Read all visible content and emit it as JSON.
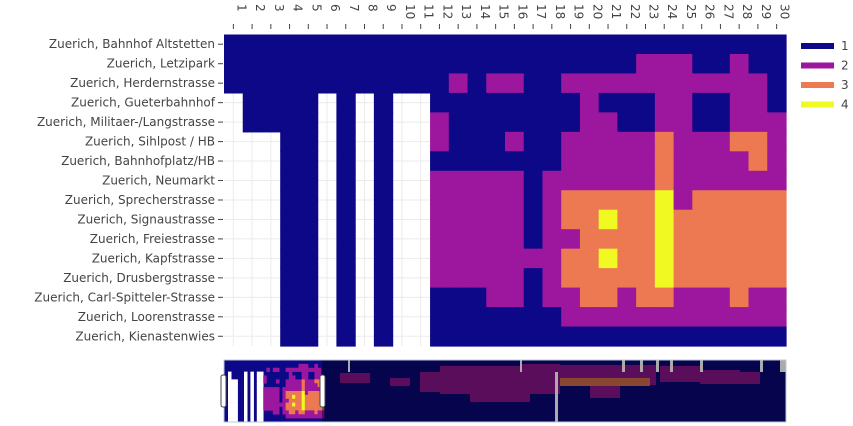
{
  "chart_data": {
    "type": "heatmap",
    "title": "",
    "xlabel": "",
    "ylabel": "",
    "x": [
      "1",
      "2",
      "3",
      "4",
      "5",
      "6",
      "7",
      "8",
      "9",
      "10",
      "11",
      "12",
      "13",
      "14",
      "15",
      "16",
      "17",
      "18",
      "19",
      "20",
      "21",
      "22",
      "23",
      "24",
      "25",
      "26",
      "27",
      "28",
      "29",
      "30"
    ],
    "y": [
      "Zuerich, Bahnhof Altstetten",
      "Zuerich, Letzipark",
      "Zuerich, Herdernstrasse",
      "Zuerich, Gueterbahnhof",
      "Zuerich, Militaer-/Langstrasse",
      "Zuerich, Sihlpost / HB",
      "Zuerich, Bahnhofplatz/HB",
      "Zuerich, Neumarkt",
      "Zuerich, Sprecherstrasse",
      "Zuerich, Signaustrasse",
      "Zuerich, Freiestrasse",
      "Zuerich, Kapfstrasse",
      "Zuerich, Drusbergstrasse",
      "Zuerich, Carl-Spitteler-Strasse",
      "Zuerich, Loorenstrasse",
      "Zuerich, Kienastenwies"
    ],
    "z": [
      [
        1,
        1,
        1,
        1,
        1,
        1,
        1,
        1,
        1,
        1,
        1,
        1,
        1,
        1,
        1,
        1,
        1,
        1,
        1,
        1,
        1,
        1,
        1,
        1,
        1,
        1,
        1,
        1,
        1,
        1
      ],
      [
        1,
        1,
        1,
        1,
        1,
        1,
        1,
        1,
        1,
        1,
        1,
        1,
        1,
        1,
        1,
        1,
        1,
        1,
        1,
        1,
        1,
        1,
        2,
        2,
        2,
        1,
        1,
        2,
        1,
        1
      ],
      [
        1,
        1,
        1,
        1,
        1,
        1,
        1,
        1,
        1,
        1,
        1,
        1,
        2,
        1,
        2,
        2,
        1,
        1,
        2,
        2,
        2,
        2,
        2,
        2,
        2,
        2,
        2,
        2,
        2,
        1
      ],
      [
        null,
        1,
        1,
        1,
        1,
        null,
        1,
        null,
        1,
        null,
        null,
        1,
        1,
        1,
        1,
        1,
        1,
        1,
        1,
        2,
        1,
        1,
        1,
        2,
        2,
        1,
        1,
        2,
        2,
        1
      ],
      [
        null,
        1,
        1,
        1,
        1,
        null,
        1,
        null,
        1,
        null,
        null,
        2,
        1,
        1,
        1,
        1,
        1,
        1,
        1,
        2,
        2,
        1,
        1,
        2,
        2,
        1,
        1,
        2,
        2,
        2
      ],
      [
        null,
        null,
        null,
        1,
        1,
        null,
        1,
        null,
        1,
        null,
        null,
        2,
        1,
        1,
        1,
        2,
        1,
        1,
        2,
        2,
        2,
        2,
        2,
        3,
        2,
        2,
        2,
        3,
        3,
        2
      ],
      [
        null,
        null,
        null,
        1,
        1,
        null,
        1,
        null,
        1,
        null,
        null,
        1,
        1,
        1,
        1,
        1,
        1,
        1,
        2,
        2,
        2,
        2,
        2,
        3,
        2,
        2,
        2,
        2,
        3,
        2
      ],
      [
        null,
        null,
        null,
        1,
        1,
        null,
        1,
        null,
        1,
        null,
        null,
        2,
        2,
        2,
        2,
        2,
        1,
        2,
        2,
        2,
        2,
        2,
        2,
        3,
        2,
        2,
        2,
        2,
        2,
        2
      ],
      [
        null,
        null,
        null,
        1,
        1,
        null,
        1,
        null,
        1,
        null,
        null,
        2,
        2,
        2,
        2,
        2,
        1,
        2,
        3,
        3,
        3,
        3,
        3,
        4,
        2,
        3,
        3,
        3,
        3,
        3
      ],
      [
        null,
        null,
        null,
        1,
        1,
        null,
        1,
        null,
        1,
        null,
        null,
        2,
        2,
        2,
        2,
        2,
        1,
        2,
        3,
        3,
        4,
        3,
        3,
        4,
        3,
        3,
        3,
        3,
        3,
        3
      ],
      [
        null,
        null,
        null,
        1,
        1,
        null,
        1,
        null,
        1,
        null,
        null,
        2,
        2,
        2,
        2,
        2,
        1,
        2,
        2,
        3,
        3,
        3,
        3,
        4,
        3,
        3,
        3,
        3,
        3,
        3
      ],
      [
        null,
        null,
        null,
        1,
        1,
        null,
        1,
        null,
        1,
        null,
        null,
        2,
        2,
        2,
        2,
        2,
        2,
        2,
        3,
        3,
        4,
        3,
        3,
        4,
        3,
        3,
        3,
        3,
        3,
        3
      ],
      [
        null,
        null,
        null,
        1,
        1,
        null,
        1,
        null,
        1,
        null,
        null,
        2,
        2,
        2,
        2,
        2,
        1,
        2,
        3,
        3,
        3,
        3,
        3,
        4,
        3,
        3,
        3,
        3,
        3,
        3
      ],
      [
        null,
        null,
        null,
        1,
        1,
        null,
        1,
        null,
        1,
        null,
        null,
        1,
        1,
        1,
        2,
        2,
        1,
        2,
        2,
        3,
        3,
        2,
        3,
        3,
        2,
        2,
        2,
        3,
        2,
        2
      ],
      [
        null,
        null,
        null,
        1,
        1,
        null,
        1,
        null,
        1,
        null,
        null,
        1,
        1,
        1,
        1,
        1,
        1,
        1,
        2,
        2,
        2,
        2,
        2,
        2,
        2,
        2,
        2,
        2,
        2,
        2
      ],
      [
        null,
        null,
        null,
        1,
        1,
        null,
        1,
        null,
        1,
        null,
        null,
        1,
        1,
        1,
        1,
        1,
        1,
        1,
        1,
        1,
        1,
        1,
        1,
        1,
        1,
        1,
        1,
        1,
        1,
        1
      ]
    ],
    "legend": {
      "placement": "right",
      "entries": [
        "1",
        "2",
        "3",
        "4"
      ]
    },
    "colors": {
      "1": "#0d0887",
      "2": "#9c179e",
      "3": "#ed7953",
      "4": "#f0f921"
    },
    "grid": true,
    "rangeslider": true
  }
}
